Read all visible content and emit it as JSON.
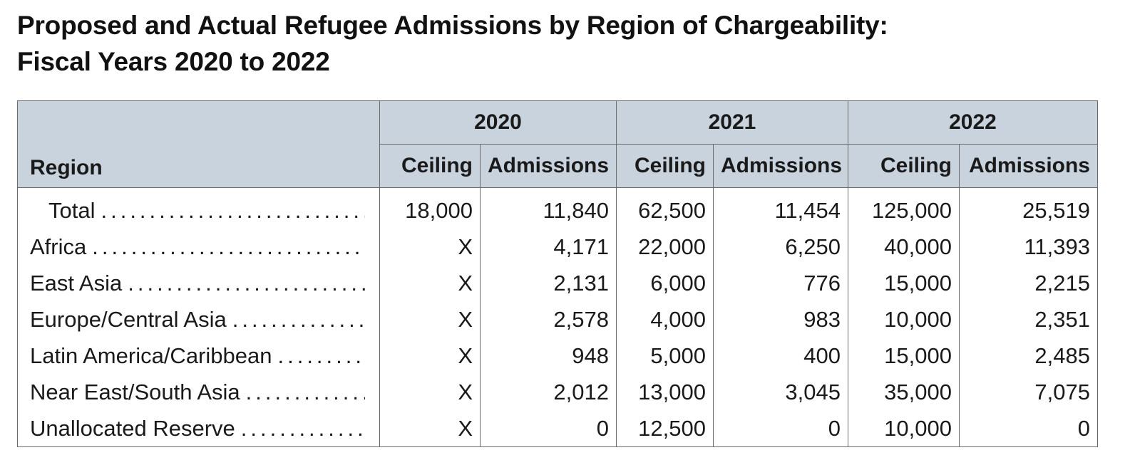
{
  "title": {
    "line1": "Proposed and Actual Refugee Admissions by Region of Chargeability:",
    "line2": "Fiscal Years 2020 to 2022"
  },
  "table": {
    "region_header": "Region",
    "years": [
      "2020",
      "2021",
      "2022"
    ],
    "sub_headers": {
      "ceiling": "Ceiling",
      "admissions": "Admissions"
    },
    "rows": [
      {
        "region": "Total",
        "values": [
          "18,000",
          "11,840",
          "62,500",
          "11,454",
          "125,000",
          "25,519"
        ]
      },
      {
        "region": "Africa",
        "values": [
          "X",
          "4,171",
          "22,000",
          "6,250",
          "40,000",
          "11,393"
        ]
      },
      {
        "region": "East Asia",
        "values": [
          "X",
          "2,131",
          "6,000",
          "776",
          "15,000",
          "2,215"
        ]
      },
      {
        "region": "Europe/Central Asia",
        "values": [
          "X",
          "2,578",
          "4,000",
          "983",
          "10,000",
          "2,351"
        ]
      },
      {
        "region": "Latin America/Caribbean",
        "values": [
          "X",
          "948",
          "5,000",
          "400",
          "15,000",
          "2,485"
        ]
      },
      {
        "region": "Near East/South Asia",
        "values": [
          "X",
          "2,012",
          "13,000",
          "3,045",
          "35,000",
          "7,075"
        ]
      },
      {
        "region": "Unallocated Reserve",
        "values": [
          "X",
          "0",
          "12,500",
          "0",
          "10,000",
          "0"
        ]
      }
    ]
  },
  "colors": {
    "header_background": "#c8d3de",
    "border": "#6b6b6b",
    "text": "#1a1a1a"
  }
}
